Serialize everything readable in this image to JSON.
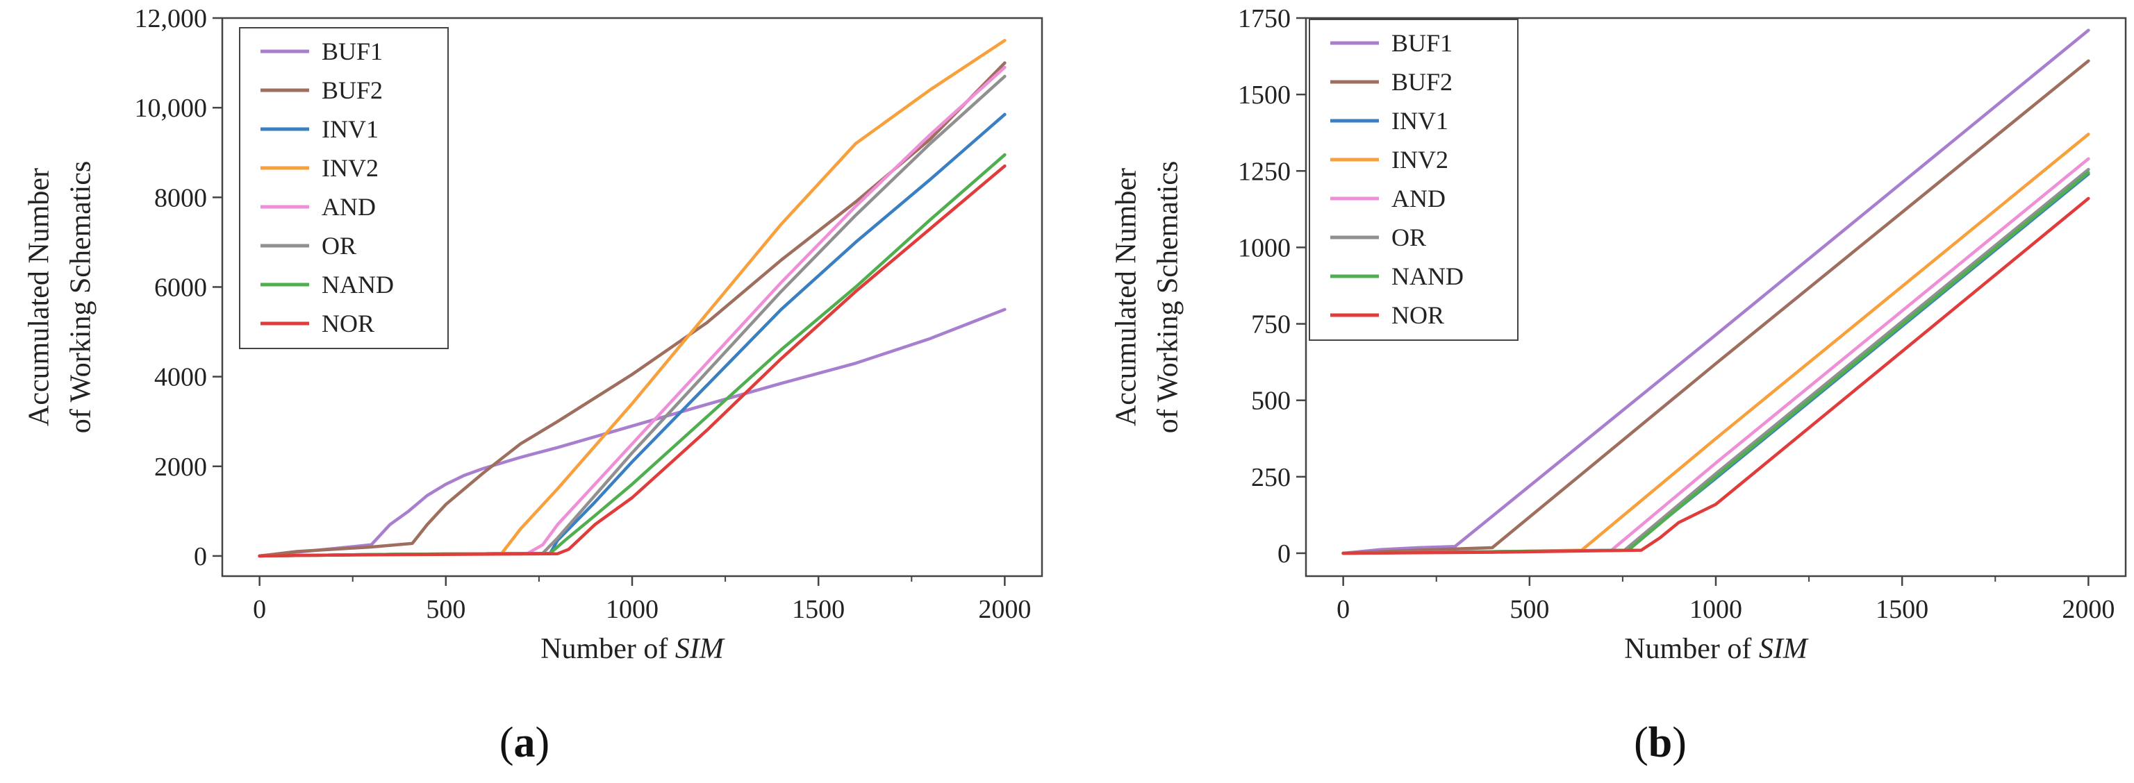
{
  "chart_data": [
    {
      "type": "line",
      "panel_label": "a",
      "xlabel_prefix": "Number of ",
      "xlabel_italic": "SIM",
      "ylabel_lines": [
        "Accumulated Number",
        "of Working Schematics"
      ],
      "xlim": [
        -100,
        2100
      ],
      "ylim": [
        -450,
        12000
      ],
      "x_ticks": [
        0,
        500,
        1000,
        1500,
        2000
      ],
      "x_tick_labels": [
        "0",
        "500",
        "1000",
        "1500",
        "2000"
      ],
      "y_ticks": [
        0,
        2000,
        4000,
        6000,
        8000,
        10000,
        12000
      ],
      "y_tick_labels": [
        "0",
        "2000",
        "4000",
        "6000",
        "8000",
        "10,000",
        "12,000"
      ],
      "legend_position": "top-left",
      "series": [
        {
          "name": "BUF1",
          "color": "#A87FCF",
          "points": [
            [
              0,
              0
            ],
            [
              300,
              250
            ],
            [
              350,
              700
            ],
            [
              400,
              1000
            ],
            [
              450,
              1350
            ],
            [
              500,
              1600
            ],
            [
              550,
              1800
            ],
            [
              600,
              1950
            ],
            [
              700,
              2200
            ],
            [
              800,
              2420
            ],
            [
              1000,
              2900
            ],
            [
              1200,
              3380
            ],
            [
              1400,
              3850
            ],
            [
              1600,
              4300
            ],
            [
              1800,
              4850
            ],
            [
              2000,
              5500
            ]
          ]
        },
        {
          "name": "BUF2",
          "color": "#9E6E5E",
          "points": [
            [
              0,
              0
            ],
            [
              100,
              100
            ],
            [
              300,
              200
            ],
            [
              410,
              280
            ],
            [
              450,
              700
            ],
            [
              500,
              1150
            ],
            [
              600,
              1850
            ],
            [
              700,
              2500
            ],
            [
              800,
              3000
            ],
            [
              1000,
              4050
            ],
            [
              1200,
              5200
            ],
            [
              1400,
              6600
            ],
            [
              1600,
              7900
            ],
            [
              1800,
              9300
            ],
            [
              2000,
              11000
            ]
          ]
        },
        {
          "name": "INV1",
          "color": "#3A7FC1",
          "points": [
            [
              0,
              0
            ],
            [
              200,
              20
            ],
            [
              400,
              40
            ],
            [
              600,
              50
            ],
            [
              700,
              55
            ],
            [
              780,
              60
            ],
            [
              800,
              350
            ],
            [
              900,
              1200
            ],
            [
              1000,
              2100
            ],
            [
              1200,
              3800
            ],
            [
              1400,
              5500
            ],
            [
              1600,
              7000
            ],
            [
              1800,
              8400
            ],
            [
              2000,
              9850
            ]
          ]
        },
        {
          "name": "INV2",
          "color": "#F7A03C",
          "points": [
            [
              0,
              0
            ],
            [
              200,
              20
            ],
            [
              400,
              40
            ],
            [
              600,
              50
            ],
            [
              650,
              60
            ],
            [
              700,
              600
            ],
            [
              800,
              1500
            ],
            [
              1000,
              3400
            ],
            [
              1200,
              5400
            ],
            [
              1400,
              7400
            ],
            [
              1600,
              9200
            ],
            [
              1800,
              10400
            ],
            [
              2000,
              11500
            ]
          ]
        },
        {
          "name": "AND",
          "color": "#EE8FD8",
          "points": [
            [
              0,
              0
            ],
            [
              200,
              20
            ],
            [
              400,
              40
            ],
            [
              600,
              50
            ],
            [
              720,
              60
            ],
            [
              760,
              250
            ],
            [
              800,
              700
            ],
            [
              1000,
              2500
            ],
            [
              1200,
              4300
            ],
            [
              1400,
              6100
            ],
            [
              1600,
              7800
            ],
            [
              1800,
              9400
            ],
            [
              2000,
              10900
            ]
          ]
        },
        {
          "name": "OR",
          "color": "#909090",
          "points": [
            [
              0,
              0
            ],
            [
              200,
              20
            ],
            [
              400,
              40
            ],
            [
              600,
              50
            ],
            [
              760,
              60
            ],
            [
              800,
              400
            ],
            [
              1000,
              2300
            ],
            [
              1200,
              4100
            ],
            [
              1400,
              5900
            ],
            [
              1600,
              7600
            ],
            [
              1800,
              9200
            ],
            [
              2000,
              10700
            ]
          ]
        },
        {
          "name": "NAND",
          "color": "#4FAF4F",
          "points": [
            [
              0,
              0
            ],
            [
              200,
              20
            ],
            [
              400,
              40
            ],
            [
              600,
              50
            ],
            [
              780,
              60
            ],
            [
              820,
              350
            ],
            [
              900,
              900
            ],
            [
              1000,
              1600
            ],
            [
              1200,
              3100
            ],
            [
              1400,
              4600
            ],
            [
              1600,
              6000
            ],
            [
              1800,
              7500
            ],
            [
              2000,
              8950
            ]
          ]
        },
        {
          "name": "NOR",
          "color": "#E03C3C",
          "points": [
            [
              0,
              0
            ],
            [
              200,
              20
            ],
            [
              400,
              30
            ],
            [
              600,
              40
            ],
            [
              800,
              50
            ],
            [
              830,
              150
            ],
            [
              900,
              700
            ],
            [
              1000,
              1300
            ],
            [
              1200,
              2800
            ],
            [
              1400,
              4400
            ],
            [
              1600,
              5900
            ],
            [
              1800,
              7300
            ],
            [
              2000,
              8700
            ]
          ]
        }
      ]
    },
    {
      "type": "line",
      "panel_label": "b",
      "xlabel_prefix": "Number of ",
      "xlabel_italic": "SIM",
      "ylabel_lines": [
        "Accumulated Number",
        "of Working Schematics"
      ],
      "xlim": [
        -100,
        2100
      ],
      "ylim": [
        -75,
        1750
      ],
      "x_ticks": [
        0,
        500,
        1000,
        1500,
        2000
      ],
      "x_tick_labels": [
        "0",
        "500",
        "1000",
        "1500",
        "2000"
      ],
      "y_ticks": [
        0,
        250,
        500,
        750,
        1000,
        1250,
        1500,
        1750
      ],
      "y_tick_labels": [
        "0",
        "250",
        "500",
        "750",
        "1000",
        "1250",
        "1500",
        "1750"
      ],
      "legend_position": "top-left",
      "series": [
        {
          "name": "BUF1",
          "color": "#A87FCF",
          "points": [
            [
              0,
              0
            ],
            [
              100,
              12
            ],
            [
              200,
              18
            ],
            [
              300,
              22
            ],
            [
              1000,
              714
            ],
            [
              2000,
              1710
            ]
          ]
        },
        {
          "name": "BUF2",
          "color": "#9E6E5E",
          "points": [
            [
              0,
              0
            ],
            [
              200,
              10
            ],
            [
              400,
              18
            ],
            [
              1000,
              620
            ],
            [
              2000,
              1610
            ]
          ]
        },
        {
          "name": "INV1",
          "color": "#3A7FC1",
          "points": [
            [
              0,
              0
            ],
            [
              400,
              5
            ],
            [
              760,
              10
            ],
            [
              1000,
              245
            ],
            [
              2000,
              1240
            ]
          ]
        },
        {
          "name": "INV2",
          "color": "#F7A03C",
          "points": [
            [
              0,
              0
            ],
            [
              400,
              5
            ],
            [
              640,
              10
            ],
            [
              1000,
              375
            ],
            [
              2000,
              1370
            ]
          ]
        },
        {
          "name": "AND",
          "color": "#EE8FD8",
          "points": [
            [
              0,
              0
            ],
            [
              400,
              5
            ],
            [
              720,
              10
            ],
            [
              1000,
              295
            ],
            [
              2000,
              1290
            ]
          ]
        },
        {
          "name": "OR",
          "color": "#909090",
          "points": [
            [
              0,
              0
            ],
            [
              400,
              5
            ],
            [
              755,
              10
            ],
            [
              1000,
              260
            ],
            [
              2000,
              1255
            ]
          ]
        },
        {
          "name": "NAND",
          "color": "#4FAF4F",
          "points": [
            [
              0,
              0
            ],
            [
              400,
              5
            ],
            [
              765,
              10
            ],
            [
              1000,
              250
            ],
            [
              2000,
              1245
            ]
          ]
        },
        {
          "name": "NOR",
          "color": "#E03C3C",
          "points": [
            [
              0,
              0
            ],
            [
              400,
              3
            ],
            [
              800,
              10
            ],
            [
              850,
              50
            ],
            [
              900,
              100
            ],
            [
              1000,
              160
            ],
            [
              2000,
              1160
            ]
          ]
        }
      ]
    }
  ]
}
